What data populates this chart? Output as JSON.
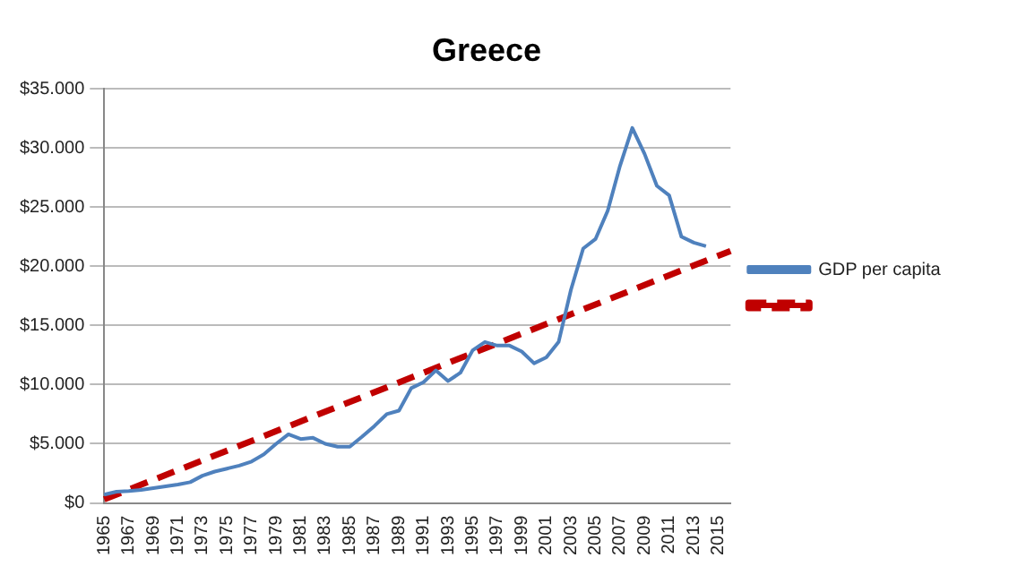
{
  "chart_data": {
    "type": "line",
    "title": "Greece",
    "categories": [
      "1965",
      null,
      "1967",
      null,
      "1969",
      null,
      "1971",
      null,
      "1973",
      null,
      "1975",
      null,
      "1977",
      null,
      "1979",
      null,
      "1981",
      null,
      "1983",
      null,
      "1985",
      null,
      "1987",
      null,
      "1989",
      null,
      "1991",
      null,
      "1993",
      null,
      "1995",
      null,
      "1997",
      null,
      "1999",
      null,
      "2001",
      null,
      "2003",
      null,
      "2005",
      null,
      "2007",
      null,
      "2009",
      null,
      "2011",
      null,
      "2013",
      null,
      "2015",
      null
    ],
    "series": [
      {
        "name": "GDP per capita",
        "color": "#4f81bd",
        "values": [
          700,
          950,
          1000,
          1100,
          1250,
          1400,
          1550,
          1750,
          2300,
          2650,
          2900,
          3150,
          3500,
          4100,
          5000,
          5800,
          5400,
          5500,
          5000,
          4750,
          4750,
          5600,
          6500,
          7500,
          7800,
          9700,
          10200,
          11200,
          10300,
          11000,
          12900,
          13600,
          13300,
          13300,
          12800,
          11800,
          12300,
          13600,
          18000,
          21500,
          22300,
          24700,
          28500,
          31700,
          29500,
          26800,
          26000,
          22500,
          22000,
          21700,
          null,
          null
        ]
      },
      {
        "type": "line",
        "color": "#c00000",
        "line_style": "dashed",
        "values": [
          300,
          null,
          null,
          null,
          null,
          null,
          null,
          null,
          null,
          null,
          null,
          null,
          null,
          null,
          null,
          null,
          null,
          null,
          null,
          null,
          null,
          null,
          null,
          null,
          null,
          null,
          null,
          null,
          null,
          null,
          null,
          null,
          null,
          null,
          null,
          null,
          null,
          null,
          null,
          null,
          null,
          null,
          null,
          null,
          null,
          null,
          null,
          null,
          null,
          null,
          null,
          21300
        ]
      }
    ],
    "ylim": [
      0,
      35000
    ],
    "yticks": [
      {
        "value": 0,
        "label": "$0"
      },
      {
        "value": 5000,
        "label": "$5.000"
      },
      {
        "value": 10000,
        "label": "$10.000"
      },
      {
        "value": 15000,
        "label": "$15.000"
      },
      {
        "value": 20000,
        "label": "$20.000"
      },
      {
        "value": 25000,
        "label": "$25.000"
      },
      {
        "value": 30000,
        "label": "$30.000"
      },
      {
        "value": 35000,
        "label": "$35.000"
      }
    ],
    "grid": "y",
    "legend": "right",
    "marker": "none"
  }
}
